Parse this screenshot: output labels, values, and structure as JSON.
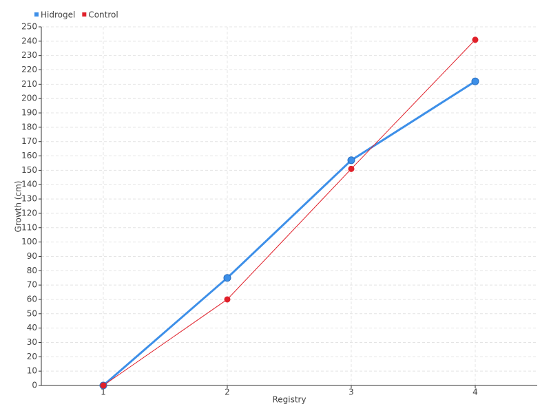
{
  "chart_data": {
    "type": "line",
    "x_label": "Registry",
    "y_label": "Growth (cm)",
    "categories": [
      "1",
      "2",
      "3",
      "4"
    ],
    "series": [
      {
        "name": "Hidrogel",
        "color": "#3d8fe8",
        "values": [
          0,
          75,
          157,
          212
        ]
      },
      {
        "name": "Control",
        "color": "#e0202a",
        "values": [
          0,
          60,
          151,
          241
        ]
      }
    ],
    "ylim": [
      0,
      250
    ],
    "yticks": [
      0,
      10,
      20,
      30,
      40,
      50,
      60,
      70,
      80,
      90,
      100,
      110,
      120,
      130,
      140,
      150,
      160,
      170,
      180,
      190,
      200,
      210,
      220,
      230,
      240,
      250
    ],
    "grid": true,
    "legend": "top-left"
  }
}
